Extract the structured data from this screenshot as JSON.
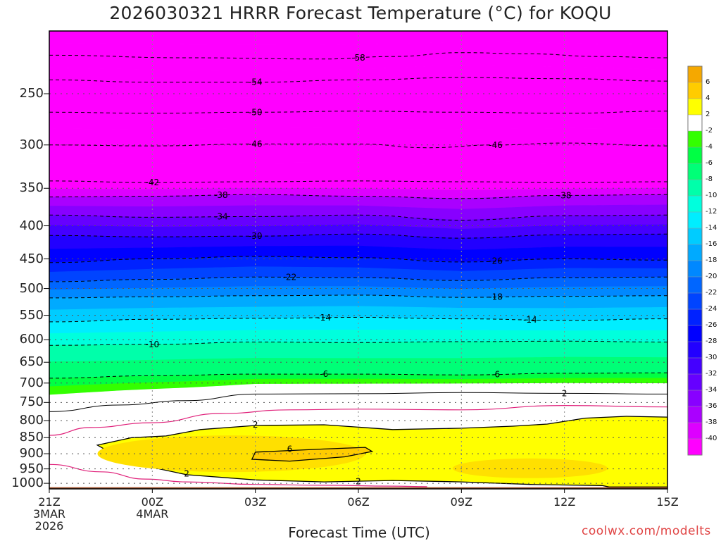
{
  "chart_data": {
    "type": "heatmap",
    "title": "2026030321 HRRR Forecast Temperature (°C) for KOQU",
    "xlabel": "Forecast Time (UTC)",
    "ylabel": "",
    "credit": "coolwx.com/modelts",
    "x_ticks": [
      {
        "hour": 0,
        "lines": [
          "21Z",
          "3MAR",
          "2026"
        ]
      },
      {
        "hour": 3,
        "lines": [
          "00Z",
          "4MAR"
        ]
      },
      {
        "hour": 6,
        "lines": [
          "03Z"
        ]
      },
      {
        "hour": 9,
        "lines": [
          "06Z"
        ]
      },
      {
        "hour": 12,
        "lines": [
          "09Z"
        ]
      },
      {
        "hour": 15,
        "lines": [
          "12Z"
        ]
      },
      {
        "hour": 18,
        "lines": [
          "15Z"
        ]
      }
    ],
    "xlim": [
      0,
      18
    ],
    "y_ticks": [
      250,
      300,
      350,
      400,
      450,
      500,
      550,
      600,
      650,
      700,
      750,
      800,
      850,
      900,
      950,
      1000
    ],
    "ylim_hpa": [
      200,
      1020
    ],
    "y_scale": "log-pressure",
    "colorbar": {
      "tick_labels": [
        "6",
        "4",
        "2",
        "-2",
        "-4",
        "-6",
        "-8",
        "-10",
        "-12",
        "-14",
        "-16",
        "-18",
        "-20",
        "-22",
        "-24",
        "-26",
        "-28",
        "-30",
        "-32",
        "-34",
        "-36",
        "-38",
        "-40"
      ],
      "bands": [
        {
          "min": 6,
          "max": 8,
          "color": "#f5a800"
        },
        {
          "min": 4,
          "max": 6,
          "color": "#ffcc00"
        },
        {
          "min": 2,
          "max": 4,
          "color": "#ffff00"
        },
        {
          "min": -2,
          "max": 2,
          "color": "#ffffff"
        },
        {
          "min": -4,
          "max": -2,
          "color": "#33ff00"
        },
        {
          "min": -6,
          "max": -4,
          "color": "#00ff44"
        },
        {
          "min": -8,
          "max": -6,
          "color": "#00ff77"
        },
        {
          "min": -10,
          "max": -8,
          "color": "#00ffaa"
        },
        {
          "min": -12,
          "max": -10,
          "color": "#00ffdd"
        },
        {
          "min": -14,
          "max": -12,
          "color": "#00eeff"
        },
        {
          "min": -16,
          "max": -14,
          "color": "#00ccff"
        },
        {
          "min": -18,
          "max": -16,
          "color": "#00aaff"
        },
        {
          "min": -20,
          "max": -18,
          "color": "#0088ff"
        },
        {
          "min": -22,
          "max": -20,
          "color": "#0066ff"
        },
        {
          "min": -24,
          "max": -22,
          "color": "#0044ff"
        },
        {
          "min": -26,
          "max": -24,
          "color": "#0022ff"
        },
        {
          "min": -28,
          "max": -26,
          "color": "#0000ff"
        },
        {
          "min": -30,
          "max": -28,
          "color": "#2200ff"
        },
        {
          "min": -32,
          "max": -30,
          "color": "#4400ff"
        },
        {
          "min": -34,
          "max": -32,
          "color": "#6600ff"
        },
        {
          "min": -36,
          "max": -34,
          "color": "#8800ff"
        },
        {
          "min": -38,
          "max": -36,
          "color": "#aa00ff"
        },
        {
          "min": -40,
          "max": -38,
          "color": "#dd00ff"
        },
        {
          "min": -60,
          "max": -40,
          "color": "#ff00ff"
        }
      ]
    },
    "isotherms": [
      {
        "value": -58,
        "label": "-58",
        "label_hour": 9.0,
        "points": [
          [
            0,
            218
          ],
          [
            4,
            220
          ],
          [
            8,
            221
          ],
          [
            10,
            219
          ],
          [
            12,
            216
          ],
          [
            14,
            217
          ],
          [
            16,
            219
          ],
          [
            18,
            220
          ]
        ]
      },
      {
        "value": -54,
        "label": "-54",
        "label_hour": 6.0,
        "points": [
          [
            0,
            238
          ],
          [
            3,
            240
          ],
          [
            6,
            240
          ],
          [
            9,
            238
          ],
          [
            12,
            236
          ],
          [
            15,
            237
          ],
          [
            18,
            239
          ]
        ]
      },
      {
        "value": -50,
        "label": "-50",
        "label_hour": 6.0,
        "points": [
          [
            0,
            267
          ],
          [
            3,
            268
          ],
          [
            6,
            267
          ],
          [
            9,
            266
          ],
          [
            12,
            267
          ],
          [
            15,
            268
          ],
          [
            18,
            266
          ]
        ]
      },
      {
        "value": -46,
        "label": "-46",
        "label_hour": 6.0,
        "points": [
          [
            0,
            300
          ],
          [
            3,
            301
          ],
          [
            6,
            299
          ],
          [
            9,
            299
          ],
          [
            11,
            303
          ],
          [
            13,
            300
          ],
          [
            15,
            298
          ],
          [
            18,
            301
          ]
        ]
      },
      {
        "value": -46,
        "label": "-46",
        "label_hour": 13.0,
        "points": []
      },
      {
        "value": -42,
        "label": "-42",
        "label_hour": 3.0,
        "points": [
          [
            0,
            341
          ],
          [
            3,
            343
          ],
          [
            6,
            342
          ],
          [
            9,
            341
          ],
          [
            12,
            342
          ],
          [
            15,
            343
          ],
          [
            18,
            342
          ]
        ]
      },
      {
        "value": -38,
        "label": "-38",
        "label_hour": 5.0,
        "points": [
          [
            0,
            361
          ],
          [
            3,
            360
          ],
          [
            6,
            358
          ],
          [
            9,
            360
          ],
          [
            12,
            363
          ],
          [
            15,
            359
          ],
          [
            18,
            358
          ]
        ]
      },
      {
        "value": -38,
        "label": "-38",
        "label_hour": 15.0,
        "points": []
      },
      {
        "value": -34,
        "label": "-34",
        "label_hour": 5.0,
        "points": [
          [
            0,
            385
          ],
          [
            3,
            388
          ],
          [
            6,
            387
          ],
          [
            9,
            385
          ],
          [
            12,
            392
          ],
          [
            15,
            386
          ],
          [
            18,
            385
          ]
        ]
      },
      {
        "value": -30,
        "label": "-30",
        "label_hour": 6.0,
        "points": [
          [
            0,
            414
          ],
          [
            3,
            416
          ],
          [
            6,
            415
          ],
          [
            9,
            412
          ],
          [
            12,
            418
          ],
          [
            15,
            413
          ],
          [
            18,
            412
          ]
        ]
      },
      {
        "value": -26,
        "label": "-26",
        "label_hour": 13.0,
        "points": [
          [
            0,
            456
          ],
          [
            3,
            450
          ],
          [
            6,
            446
          ],
          [
            9,
            448
          ],
          [
            12,
            455
          ],
          [
            15,
            450
          ],
          [
            18,
            452
          ]
        ]
      },
      {
        "value": -22,
        "label": "-22",
        "label_hour": 7.0,
        "points": [
          [
            0,
            488
          ],
          [
            3,
            484
          ],
          [
            6,
            480
          ],
          [
            9,
            481
          ],
          [
            12,
            486
          ],
          [
            15,
            481
          ],
          [
            18,
            480
          ]
        ]
      },
      {
        "value": -18,
        "label": "-18",
        "label_hour": 13.0,
        "points": [
          [
            0,
            517
          ],
          [
            3,
            515
          ],
          [
            6,
            513
          ],
          [
            9,
            512
          ],
          [
            12,
            516
          ],
          [
            15,
            514
          ],
          [
            18,
            513
          ]
        ]
      },
      {
        "value": -14,
        "label": "-14",
        "label_hour": 8.0,
        "points": [
          [
            0,
            563
          ],
          [
            3,
            558
          ],
          [
            6,
            556
          ],
          [
            9,
            554
          ],
          [
            12,
            557
          ],
          [
            15,
            560
          ],
          [
            18,
            557
          ]
        ]
      },
      {
        "value": -14,
        "label": "-14",
        "label_hour": 14.0,
        "points": []
      },
      {
        "value": -10,
        "label": "-10",
        "label_hour": 3.0,
        "points": [
          [
            0,
            612
          ],
          [
            3,
            610
          ],
          [
            6,
            605
          ],
          [
            9,
            606
          ],
          [
            12,
            604
          ],
          [
            15,
            603
          ],
          [
            18,
            605
          ]
        ]
      },
      {
        "value": -6,
        "label": "-6",
        "label_hour": 8.0,
        "points": [
          [
            0,
            688
          ],
          [
            3,
            682
          ],
          [
            6,
            678
          ],
          [
            9,
            678
          ],
          [
            12,
            680
          ],
          [
            15,
            676
          ],
          [
            18,
            675
          ]
        ]
      },
      {
        "value": -6,
        "label": "-6",
        "label_hour": 13.0,
        "points": []
      },
      {
        "value": 2,
        "label": "2",
        "label_hour": 15.0,
        "points": [
          [
            0,
            775
          ],
          [
            2,
            757
          ],
          [
            4,
            745
          ],
          [
            6,
            728
          ],
          [
            9,
            727
          ],
          [
            12,
            724
          ],
          [
            15,
            726
          ],
          [
            18,
            728
          ]
        ]
      }
    ],
    "warm_zone": {
      "label_2_upper": {
        "label": "2",
        "hour": 6.0
      },
      "label_2_lower_left": {
        "label": "2",
        "hour": 4.0
      },
      "label_2_lower_mid": {
        "label": "2",
        "hour": 9.0
      },
      "label_6": {
        "label": "6",
        "hour": 7.0
      }
    }
  }
}
